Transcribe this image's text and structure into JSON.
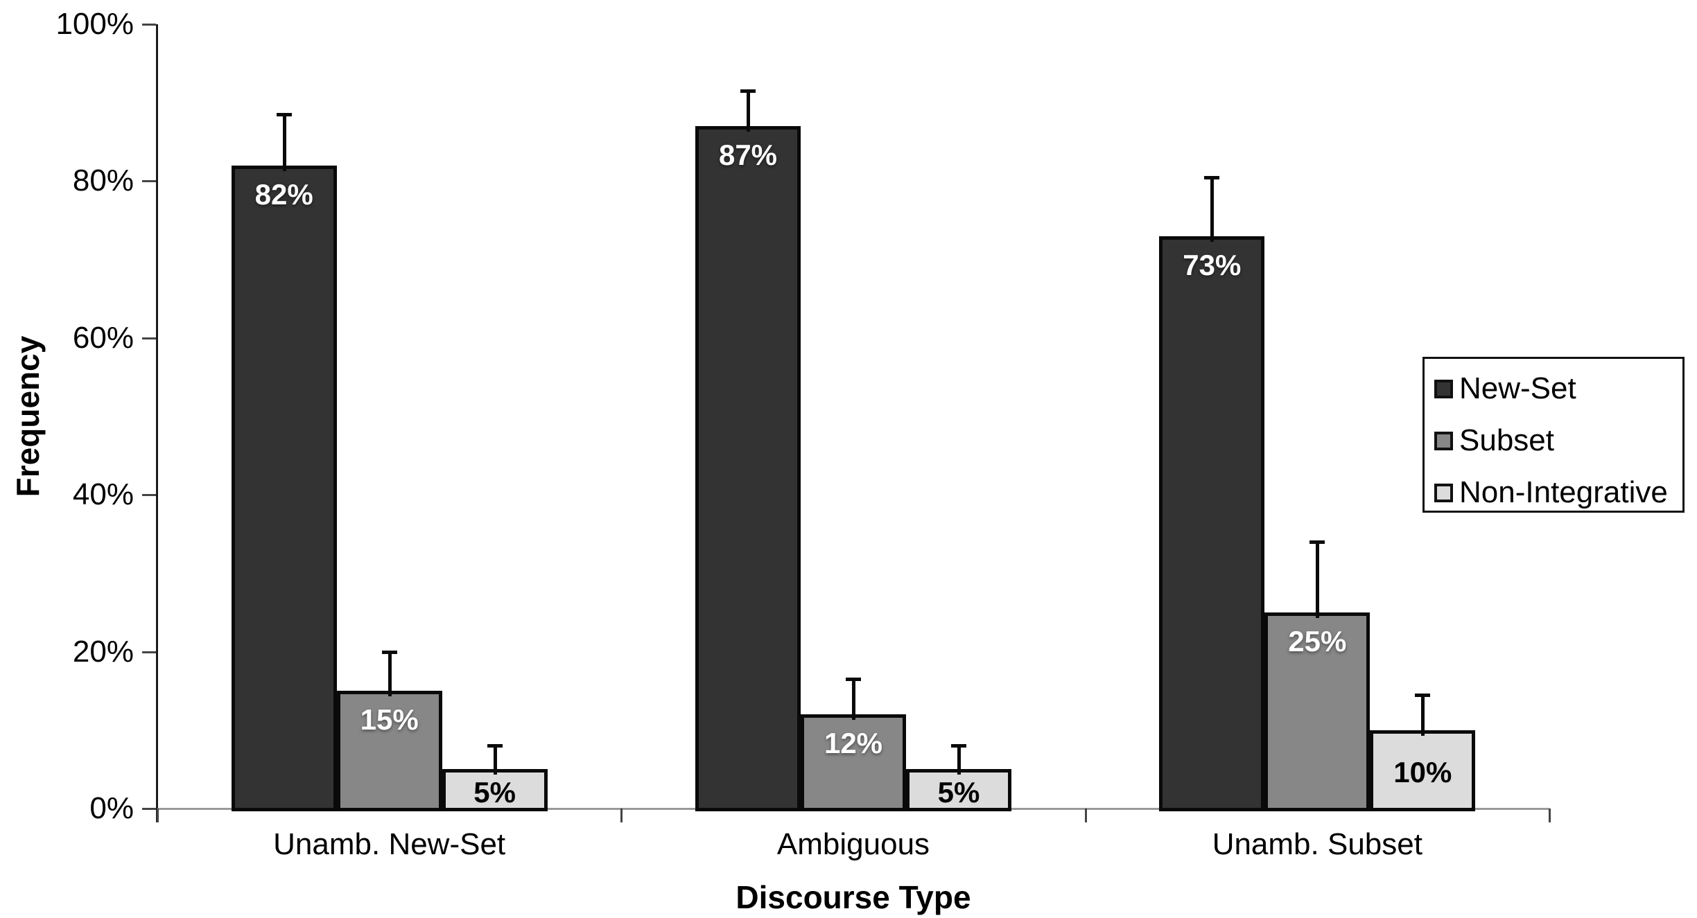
{
  "chart_data": {
    "type": "bar",
    "title": "",
    "xlabel": "Discourse Type",
    "ylabel": "Frequency",
    "categories": [
      "Unamb. New-Set",
      "Ambiguous",
      "Unamb. Subset"
    ],
    "series": [
      {
        "name": "New-Set",
        "color": "#333333",
        "label_color": "#ffffff",
        "values": [
          82,
          87,
          73
        ],
        "errors_plus": [
          6.5,
          4.5,
          7.5
        ]
      },
      {
        "name": "Subset",
        "color": "#878787",
        "label_color": "#ffffff",
        "values": [
          15,
          12,
          25
        ],
        "errors_plus": [
          5.0,
          4.5,
          9.0
        ]
      },
      {
        "name": "Non-Integrative",
        "color": "#dcdcdc",
        "label_color": "#000000",
        "values": [
          5,
          5,
          10
        ],
        "errors_plus": [
          3.0,
          3.0,
          4.5
        ]
      }
    ],
    "value_label_unit": "%",
    "y_tick_values": [
      0,
      20,
      40,
      60,
      80,
      100
    ],
    "y_tick_labels": [
      "0%",
      "20%",
      "40%",
      "60%",
      "80%",
      "100%"
    ],
    "ylim": [
      0,
      100
    ],
    "grid": false,
    "error_bars": "plus-only",
    "legend_position": "right",
    "colors": {
      "axis": "#1a1a1a",
      "baseline": "#999999",
      "background": "#ffffff"
    }
  }
}
